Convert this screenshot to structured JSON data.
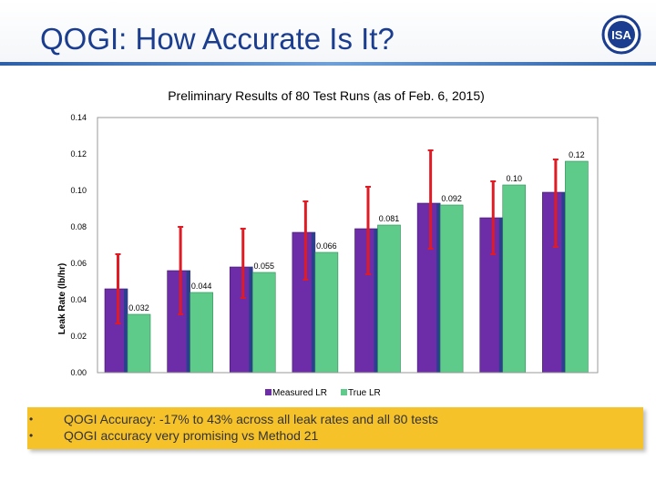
{
  "slide": {
    "title": "QOGI: How Accurate Is It?",
    "logo_text": "ISA"
  },
  "chart_data": {
    "type": "bar",
    "title": "Preliminary Results of 80 Test Runs (as of Feb. 6, 2015)",
    "xlabel": "",
    "ylabel": "Leak Rate (lb/hr)",
    "ylim": [
      0,
      0.14
    ],
    "yticks": [
      "0.00",
      "0.02",
      "0.04",
      "0.06",
      "0.08",
      "0.10",
      "0.12",
      "0.14"
    ],
    "grid": false,
    "legend_position": "bottom",
    "series": [
      {
        "name": "Measured LR",
        "color": "#6e2da8",
        "values": [
          0.046,
          0.056,
          0.058,
          0.077,
          0.079,
          0.093,
          0.085,
          0.099
        ],
        "error_low": [
          0.027,
          0.032,
          0.041,
          0.051,
          0.054,
          0.068,
          0.065,
          0.069
        ],
        "error_high": [
          0.065,
          0.08,
          0.079,
          0.094,
          0.102,
          0.122,
          0.105,
          0.117
        ]
      },
      {
        "name": "True LR",
        "color": "#5ecb8a",
        "values": [
          0.032,
          0.044,
          0.055,
          0.066,
          0.081,
          0.092,
          0.103,
          0.116
        ],
        "labels": [
          "0.032",
          "0.044",
          "0.055",
          "0.066",
          "0.081",
          "0.092",
          "0.10",
          "0.12"
        ]
      }
    ],
    "error_bar_color": "#e01b24"
  },
  "notes": [
    "QOGI Accuracy: -17% to 43% across all leak rates and all 80 tests",
    "QOGI accuracy very promising vs Method 21"
  ]
}
